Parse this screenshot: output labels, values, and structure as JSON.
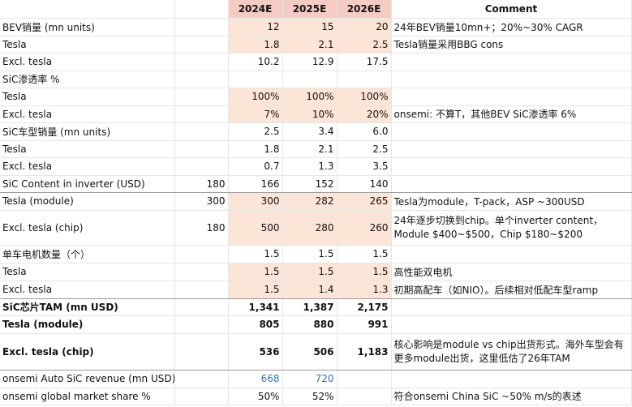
{
  "header": {
    "col_2024": "2024E",
    "col_2025": "2025E",
    "col_2026": "2026E",
    "col_comment": "Comment"
  },
  "rows": [
    {
      "label": "BEV销量 (mn units)",
      "base": "",
      "v2024": "12",
      "v2025": "15",
      "v2026": "20",
      "comment": "24年BEV销量10mn+；20%~30% CAGR"
    },
    {
      "label": "Tesla",
      "base": "",
      "v2024": "1.8",
      "v2025": "2.1",
      "v2026": "2.5",
      "comment": "Tesla销量采用BBG cons"
    },
    {
      "label": "Excl. tesla",
      "base": "",
      "v2024": "10.2",
      "v2025": "12.9",
      "v2026": "17.5",
      "comment": ""
    },
    {
      "label": "SiC渗透率 %",
      "base": "",
      "v2024": "",
      "v2025": "",
      "v2026": "",
      "comment": ""
    },
    {
      "label": "Tesla",
      "base": "",
      "v2024": "100%",
      "v2025": "100%",
      "v2026": "100%",
      "comment": ""
    },
    {
      "label": "Excl. tesla",
      "base": "",
      "v2024": "7%",
      "v2025": "10%",
      "v2026": "20%",
      "comment": "onsemi: 不算T，其他BEV SiC渗透率 6%"
    },
    {
      "label": "SiC车型销量 (mn units)",
      "base": "",
      "v2024": "2.5",
      "v2025": "3.4",
      "v2026": "6.0",
      "comment": ""
    },
    {
      "label": "Tesla",
      "base": "",
      "v2024": "1.8",
      "v2025": "2.1",
      "v2026": "2.5",
      "comment": ""
    },
    {
      "label": "Excl. tesla",
      "base": "",
      "v2024": "0.7",
      "v2025": "1.3",
      "v2026": "3.5",
      "comment": ""
    },
    {
      "label": "SiC Content in inverter (USD)",
      "base": "180",
      "v2024": "166",
      "v2025": "152",
      "v2026": "140",
      "comment": ""
    },
    {
      "label": "Tesla (module)",
      "base": "300",
      "v2024": "300",
      "v2025": "282",
      "v2026": "265",
      "comment": "Tesla为module，T-pack，ASP ~300USD"
    },
    {
      "label": "Excl. tesla (chip)",
      "base": "180",
      "v2024": "500",
      "v2025": "280",
      "v2026": "260",
      "comment": "24年逐步切换到chip。单个inverter content，Module $400~$500，Chip $180~$200"
    },
    {
      "label": "单车电机数量（个）",
      "base": "",
      "v2024": "1.5",
      "v2025": "1.5",
      "v2026": "1.5",
      "comment": ""
    },
    {
      "label": "Tesla",
      "base": "",
      "v2024": "1.5",
      "v2025": "1.5",
      "v2026": "1.5",
      "comment": "高性能双电机"
    },
    {
      "label": "Excl. tesla",
      "base": "",
      "v2024": "1.5",
      "v2025": "1.4",
      "v2026": "1.3",
      "comment": "初期高配车（如NIO）。后续相对低配车型ramp"
    },
    {
      "label": "SiC芯片TAM (mn USD)",
      "base": "",
      "v2024": "1,341",
      "v2025": "1,387",
      "v2026": "2,175",
      "comment": ""
    },
    {
      "label": "Tesla (module)",
      "base": "",
      "v2024": "805",
      "v2025": "880",
      "v2026": "991",
      "comment": ""
    },
    {
      "label": "Excl. tesla (chip)",
      "base": "",
      "v2024": "536",
      "v2025": "506",
      "v2026": "1,183",
      "comment": "核心影响是module vs chip出货形式。海外车型会有更多module出货，这里低估了26年TAM"
    },
    {
      "label": "onsemi Auto SiC revenue (mn USD)",
      "base": "",
      "v2024": "668",
      "v2025": "720",
      "v2026": "",
      "comment": ""
    },
    {
      "label": "onsemi global market share %",
      "base": "",
      "v2024": "50%",
      "v2025": "52%",
      "v2026": "",
      "comment": "符合onsemi China SiC ~50% m/s的表述"
    }
  ]
}
